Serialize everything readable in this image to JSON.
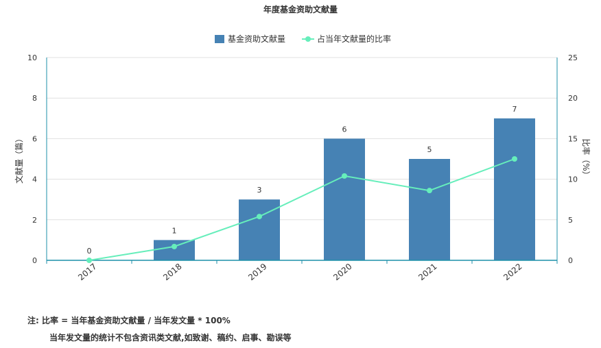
{
  "chart_data": {
    "type": "bar",
    "title": "年度基金资助文献量",
    "categories": [
      "2017",
      "2018",
      "2019",
      "2020",
      "2021",
      "2022"
    ],
    "series": [
      {
        "name": "基金资助文献量",
        "type": "bar",
        "axis": "left",
        "values": [
          0,
          1,
          3,
          6,
          5,
          7
        ]
      },
      {
        "name": "占当年文献量的比率",
        "type": "line",
        "axis": "right",
        "values": [
          0,
          1.7,
          5.4,
          10.4,
          8.6,
          12.5
        ]
      }
    ],
    "ylabel": "文献量（篇）",
    "ylim": [
      0,
      10
    ],
    "yticks": [
      "0",
      "2",
      "4",
      "6",
      "8",
      "10"
    ],
    "y2label": "比率（%）",
    "y2lim": [
      0,
      25
    ],
    "y2ticks": [
      "0",
      "5",
      "10",
      "15",
      "20",
      "25"
    ],
    "grid": true,
    "legend": "top-center",
    "colors": {
      "bar": "#4682b4",
      "line": "#66eebb",
      "axis": "#1c8fa8",
      "grid": "#e0e0e0"
    }
  },
  "notes": {
    "line1": "注:   比率 = 当年基金资助文献量 / 当年发文量 * 100%",
    "line2": "当年发文量的统计不包含资讯类文献,如致谢、稿约、启事、勘误等"
  }
}
